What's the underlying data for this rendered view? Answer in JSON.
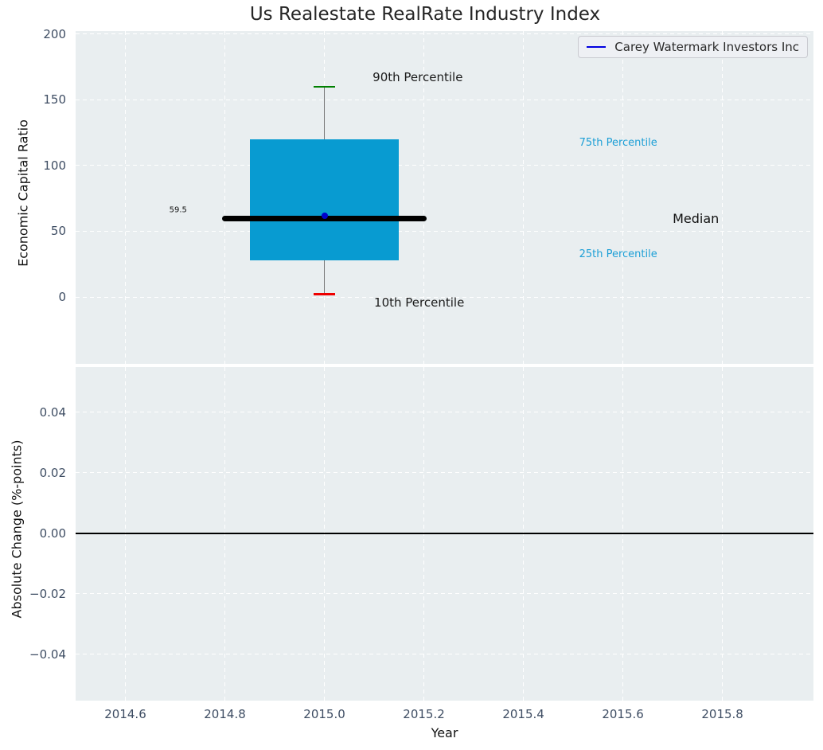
{
  "title": "Us Realestate RealRate Industry Index",
  "legend": {
    "label": "Carey Watermark Investors Inc",
    "line_color": "#0000e0"
  },
  "colors": {
    "figure_bg": "#ffffff",
    "axes_bg": "#e9eef0",
    "grid": "#ffffff",
    "tick_label": "#3e4d63",
    "box_fill": "#089bd1",
    "median_line": "#000000",
    "whisker": "#777777",
    "cap_90th": "#008000",
    "cap_10th": "#ee0000",
    "company_marker": "#0000cc",
    "percentile_label": "#1c9fd6",
    "zero_line": "#000000"
  },
  "chart_data": [
    {
      "type": "boxplot",
      "subplot": "top",
      "title": "Us Realestate RealRate Industry Index",
      "ylabel": "Economic Capital Ratio",
      "ylim": [
        -50.9,
        202.4
      ],
      "ytick_values": [
        200,
        150,
        100,
        50,
        0
      ],
      "ytick_labels": [
        "200",
        "150",
        "100",
        "50",
        "0"
      ],
      "xlim": [
        2014.5,
        2015.983
      ],
      "xtick_values": [
        2014.6,
        2014.8,
        2015.0,
        2015.2,
        2015.4,
        2015.6,
        2015.8
      ],
      "grid": "white-dashed",
      "box": {
        "x": 2015.0,
        "p10": 2,
        "p25": 28,
        "median": 59.5,
        "p75": 120,
        "p90": 160,
        "company_value": 62,
        "box_half_width": 0.15,
        "median_half_width": 0.205,
        "cap_half_width": 0.021
      },
      "median_value_label": "59.5",
      "annotations": [
        {
          "text": "90th Percentile",
          "x": 2015.097,
          "y": 167,
          "color": "#1a1a1a",
          "size": 15,
          "anchor": "left"
        },
        {
          "text": "10th Percentile",
          "x": 2015.1,
          "y": -4.5,
          "color": "#1a1a1a",
          "size": 15,
          "anchor": "left"
        },
        {
          "text": "75th Percentile",
          "x": 2015.512,
          "y": 117,
          "color": "#1c9fd6",
          "size": 13,
          "anchor": "left"
        },
        {
          "text": "25th Percentile",
          "x": 2015.512,
          "y": 32,
          "color": "#1c9fd6",
          "size": 13,
          "anchor": "left"
        },
        {
          "text": "Median",
          "x": 2015.7,
          "y": 59.5,
          "color": "#111111",
          "size": 16,
          "anchor": "left"
        },
        {
          "text": "59.5",
          "x": 2014.706,
          "y": 66,
          "color": "#111111",
          "size": 10,
          "anchor": "center"
        }
      ]
    },
    {
      "type": "line",
      "subplot": "bottom",
      "ylabel": "Absolute Change (%-points)",
      "xlabel": "Year",
      "ylim": [
        -0.0553,
        0.055
      ],
      "ytick_values": [
        0.04,
        0.02,
        0.0,
        -0.02,
        -0.04
      ],
      "ytick_labels": [
        "0.04",
        "0.02",
        "0.00",
        "−0.02",
        "−0.04"
      ],
      "xlim": [
        2014.5,
        2015.983
      ],
      "xtick_values": [
        2014.6,
        2014.8,
        2015.0,
        2015.2,
        2015.4,
        2015.6,
        2015.8
      ],
      "xtick_labels": [
        "2014.6",
        "2014.8",
        "2015.0",
        "2015.2",
        "2015.4",
        "2015.6",
        "2015.8"
      ],
      "grid": "white-dashed",
      "zero_line": 0.0,
      "series": []
    }
  ]
}
